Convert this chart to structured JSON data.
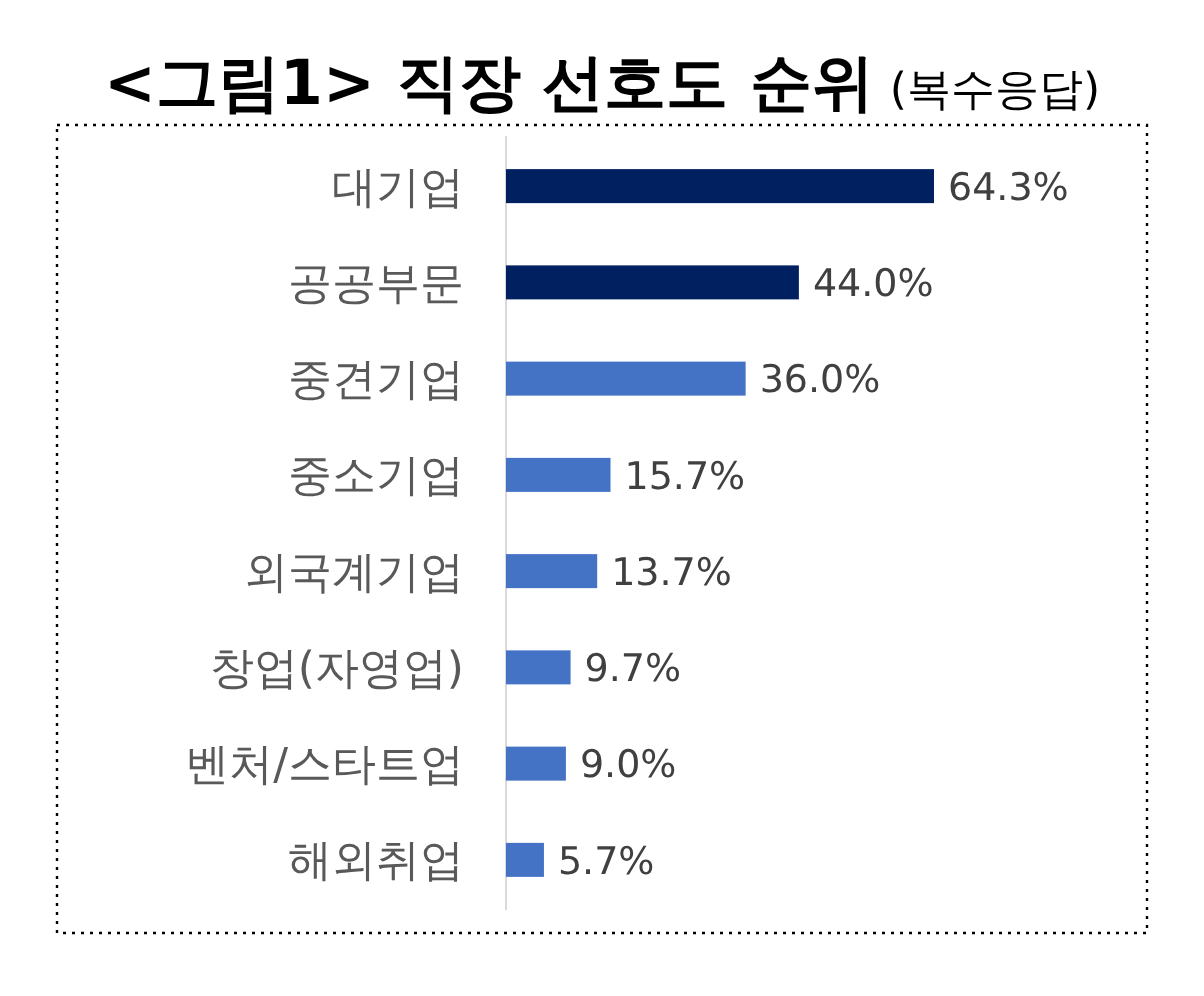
{
  "chart_data": {
    "type": "bar",
    "orientation": "horizontal",
    "title": "<그림1> 직장 선호도 순위",
    "subtitle": "(복수응답)",
    "categories": [
      "대기업",
      "공공부문",
      "중견기업",
      "중소기업",
      "외국계기업",
      "창업(자영업)",
      "벤처/스타트업",
      "해외취업"
    ],
    "values": [
      64.3,
      44.0,
      36.0,
      15.7,
      13.7,
      9.7,
      9.0,
      5.7
    ],
    "colors": [
      "#002060",
      "#002060",
      "#4472c4",
      "#4472c4",
      "#4472c4",
      "#4472c4",
      "#4472c4",
      "#4472c4"
    ],
    "value_labels": [
      "64.3%",
      "44.0%",
      "36.0%",
      "15.7%",
      "13.7%",
      "9.7%",
      "9.0%",
      "5.7%"
    ]
  }
}
